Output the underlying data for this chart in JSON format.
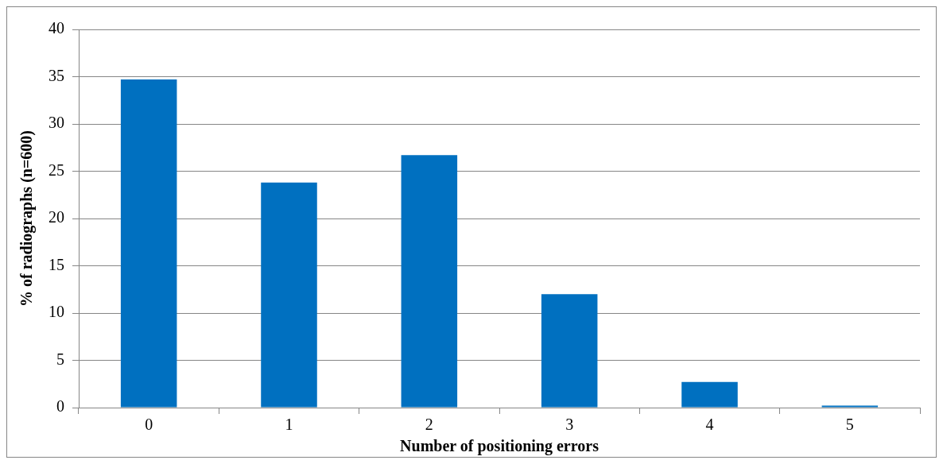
{
  "chart_data": {
    "type": "bar",
    "xlabel": "Number of positioning errors",
    "ylabel": "% of radiographs (n=600)",
    "categories": [
      "0",
      "1",
      "2",
      "3",
      "4",
      "5"
    ],
    "values": [
      34.7,
      23.8,
      26.7,
      12.0,
      2.7,
      0.2
    ],
    "color": "#0070c0",
    "ylim": [
      0,
      40
    ],
    "yticks": [
      0,
      5,
      10,
      15,
      20,
      25,
      30,
      35,
      40
    ],
    "grid": "y",
    "legend": false
  }
}
